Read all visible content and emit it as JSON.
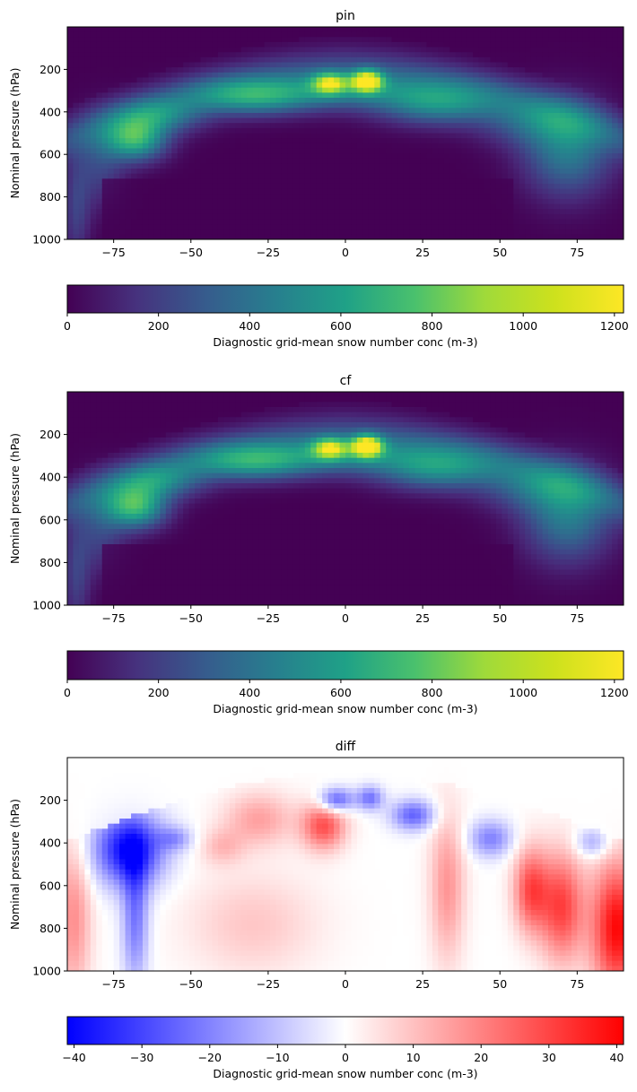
{
  "chart_data": [
    {
      "type": "heatmap",
      "title": "pin",
      "xlabel": "",
      "ylabel": "Nominal pressure (hPa)",
      "xlim": [
        -90,
        90
      ],
      "ylim": [
        1000,
        0
      ],
      "x_ticks": [
        "−75",
        "−50",
        "−25",
        "0",
        "25",
        "50",
        "75"
      ],
      "y_ticks": [
        "200",
        "400",
        "600",
        "800",
        "1000"
      ],
      "colormap": "viridis",
      "colorbar": {
        "label": "Diagnostic grid-mean snow number conc (m-3)",
        "range": [
          0,
          1220
        ],
        "ticks": [
          "0",
          "200",
          "400",
          "600",
          "800",
          "1000",
          "1200"
        ]
      },
      "features": [
        {
          "description": "mid-latitude maximum",
          "lat": -68,
          "pressure_hPa": 520,
          "value": 780
        },
        {
          "description": "upper-tropospheric maximum",
          "lat": -5,
          "pressure_hPa": 260,
          "value": 950
        },
        {
          "description": "upper-tropospheric maximum",
          "lat": 7,
          "pressure_hPa": 255,
          "value": 1210
        },
        {
          "description": "northern branch",
          "lat": 70,
          "pressure_hPa": 560,
          "value": 500
        }
      ]
    },
    {
      "type": "heatmap",
      "title": "cf",
      "xlabel": "",
      "ylabel": "Nominal pressure (hPa)",
      "xlim": [
        -90,
        90
      ],
      "ylim": [
        1000,
        0
      ],
      "x_ticks": [
        "−75",
        "−50",
        "−25",
        "0",
        "25",
        "50",
        "75"
      ],
      "y_ticks": [
        "200",
        "400",
        "600",
        "800",
        "1000"
      ],
      "colormap": "viridis",
      "colorbar": {
        "label": "Diagnostic grid-mean snow number conc (m-3)",
        "range": [
          0,
          1220
        ],
        "ticks": [
          "0",
          "200",
          "400",
          "600",
          "800",
          "1000",
          "1200"
        ]
      },
      "features": [
        {
          "description": "mid-latitude maximum",
          "lat": -68,
          "pressure_hPa": 540,
          "value": 820
        },
        {
          "description": "upper-tropospheric maximum",
          "lat": -5,
          "pressure_hPa": 265,
          "value": 900
        },
        {
          "description": "upper-tropospheric maximum",
          "lat": 7,
          "pressure_hPa": 255,
          "value": 1200
        },
        {
          "description": "northern branch",
          "lat": 70,
          "pressure_hPa": 570,
          "value": 480
        }
      ]
    },
    {
      "type": "heatmap",
      "title": "diff",
      "xlabel": "",
      "ylabel": "Nominal pressure (hPa)",
      "xlim": [
        -90,
        90
      ],
      "ylim": [
        1000,
        0
      ],
      "x_ticks": [
        "−75",
        "−50",
        "−25",
        "0",
        "25",
        "50",
        "75"
      ],
      "y_ticks": [
        "200",
        "400",
        "600",
        "800",
        "1000"
      ],
      "colormap": "bwr",
      "colorbar": {
        "label": "Diagnostic grid-mean snow number conc (m-3)",
        "range": [
          -41,
          41
        ],
        "ticks": [
          "−40",
          "−30",
          "−20",
          "−10",
          "0",
          "10",
          "20",
          "30",
          "40"
        ]
      },
      "features": [
        {
          "description": "negative lobe",
          "lat": -70,
          "pressure_hPa": 430,
          "value": -40
        },
        {
          "description": "negative lobe",
          "lat": -3,
          "pressure_hPa": 200,
          "value": -28
        },
        {
          "description": "negative lobe",
          "lat": 8,
          "pressure_hPa": 190,
          "value": -22
        },
        {
          "description": "negative lobe",
          "lat": 22,
          "pressure_hPa": 270,
          "value": -25
        },
        {
          "description": "negative lobe",
          "lat": 47,
          "pressure_hPa": 380,
          "value": -20
        },
        {
          "description": "negative lobe",
          "lat": 80,
          "pressure_hPa": 400,
          "value": -15
        },
        {
          "description": "positive lobe",
          "lat": -7,
          "pressure_hPa": 320,
          "value": 28
        },
        {
          "description": "positive lobe",
          "lat": -28,
          "pressure_hPa": 290,
          "value": 15
        },
        {
          "description": "positive lobe",
          "lat": 60,
          "pressure_hPa": 620,
          "value": 28
        },
        {
          "description": "positive lobe",
          "lat": 70,
          "pressure_hPa": 700,
          "value": 30
        },
        {
          "description": "positive lobe",
          "lat": 88,
          "pressure_hPa": 800,
          "value": 40
        },
        {
          "description": "positive lobe",
          "lat": -88,
          "pressure_hPa": 750,
          "value": 18
        },
        {
          "description": "positive lobe",
          "lat": 33,
          "pressure_hPa": 600,
          "value": 17
        }
      ]
    }
  ]
}
